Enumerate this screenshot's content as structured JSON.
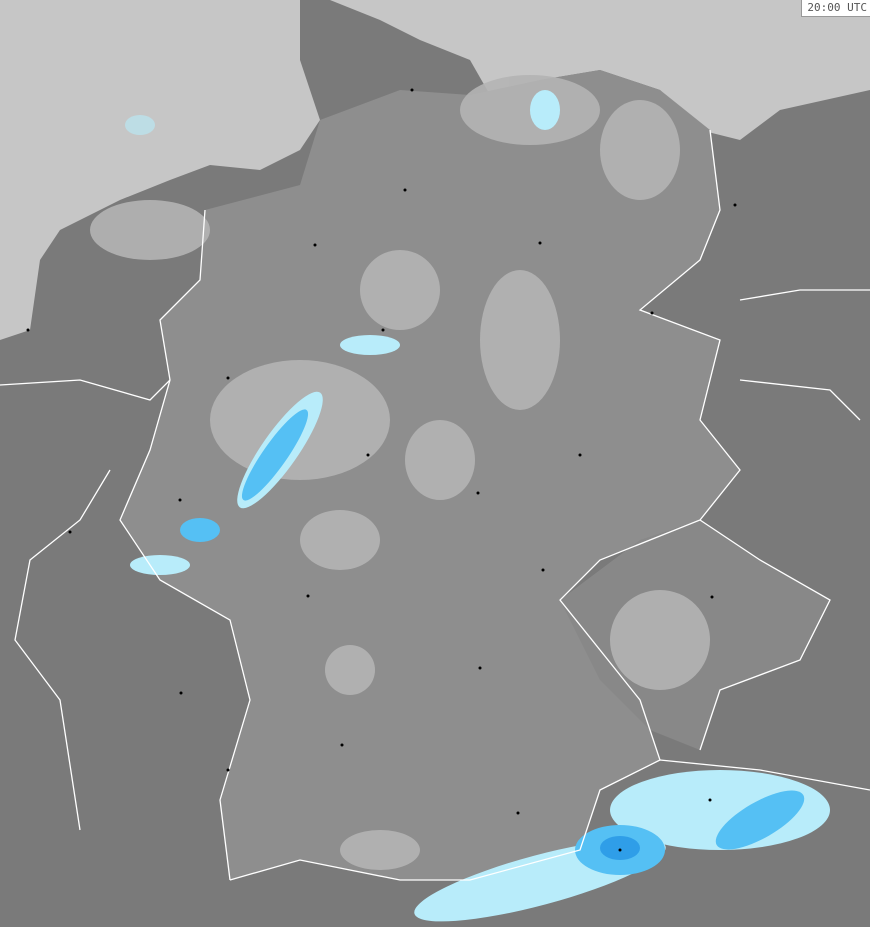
{
  "map": {
    "timestamp": "20:00 UTC",
    "colors": {
      "sea": "#c6c6c6",
      "land_neighbor": "#7a7a7a",
      "land_germany": "#8e8e8e",
      "precip_light": "#b4b4b4",
      "precip_blue_light": "#b8ecfa",
      "precip_blue": "#55c0f4",
      "precip_blue_strong": "#2f9ee8",
      "border": "#ffffff",
      "city": "#000000"
    }
  }
}
